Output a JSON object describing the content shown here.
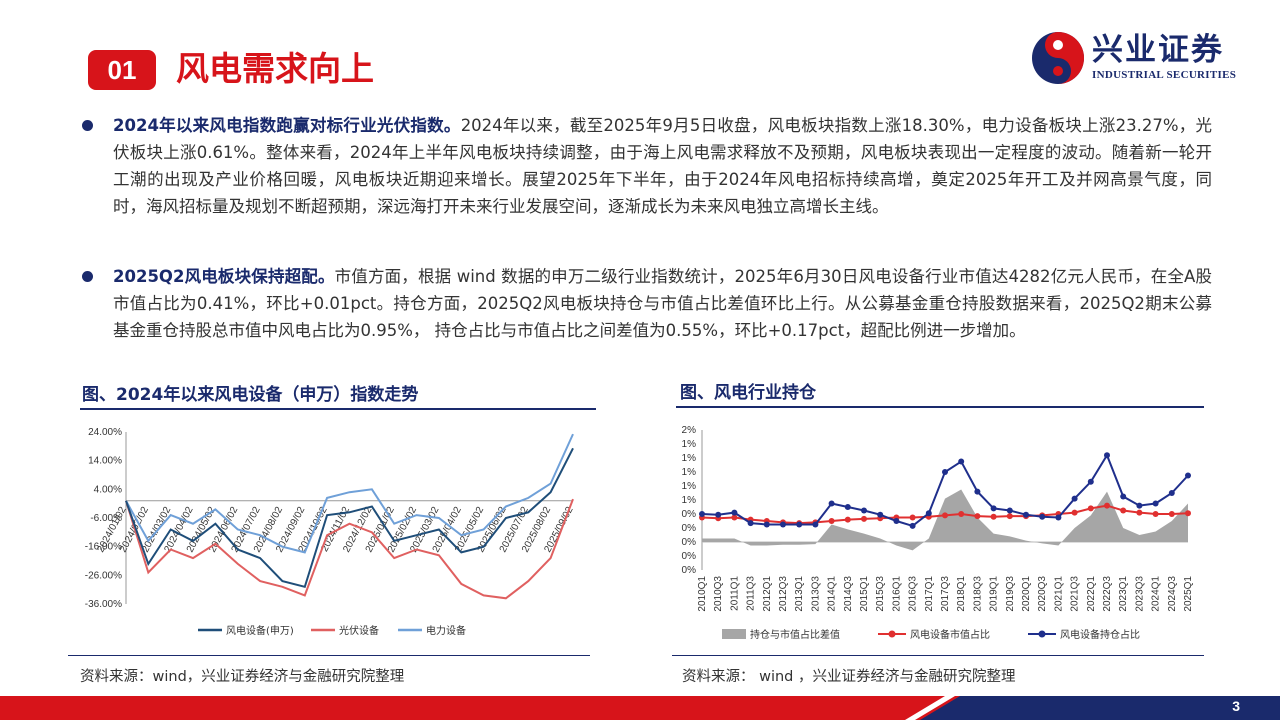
{
  "header": {
    "section_number": "01",
    "section_title": "风电需求向上",
    "logo_cn": "兴业证券",
    "logo_en": "INDUSTRIAL SECURITIES"
  },
  "bullets": [
    {
      "lead": "2024年以来风电指数跑赢对标行业光伏指数。",
      "body": "2024年以来，截至2025年9月5日收盘，风电板块指数上涨18.30%，电力设备板块上涨23.27%，光伏板块上涨0.61%。整体来看，2024年上半年风电板块持续调整，由于海上风电需求释放不及预期，风电板块表现出一定程度的波动。随着新一轮开工潮的出现及产业价格回暖，风电板块近期迎来增长。展望2025年下半年，由于2024年风电招标持续高增，奠定2025年开工及并网高景气度，同时，海风招标量及规划不断超预期，深远海打开未来行业发展空间，逐渐成长为未来风电独立高增长主线。"
    },
    {
      "lead": "2025Q2风电板块保持超配。",
      "body": "市值方面，根据 wind 数据的申万二级行业指数统计，2025年6月30日风电设备行业市值达4282亿元人民币，在全A股市值占比为0.41%，环比+0.01pct。持仓方面，2025Q2风电板块持仓与市值占比差值环比上行。从公募基金重仓持股数据来看，2025Q2期末公募基金重仓持股总市值中风电占比为0.95%， 持仓占比与市值占比之间差值为0.55%，环比+0.17pct，超配比例进一步增加。"
    }
  ],
  "figures": {
    "left_title": "图、2024年以来风电设备（申万）指数走势",
    "right_title": "图、风电行业持仓",
    "left_source": "资料来源：wind，兴业证券经济与金融研究院整理",
    "right_source": "资料来源： wind ，兴业证券经济与金融研究院整理"
  },
  "page_number": "3",
  "colors": {
    "brand_red": "#d7141a",
    "brand_navy": "#1a2a6c",
    "wind_line": "#1f4e79",
    "pv_line": "#e06060",
    "power_line": "#6fa0d8",
    "holding_line": "#1f2f8c",
    "mv_line": "#e03030",
    "diff_area": "#a6a6a6"
  },
  "chart_data": [
    {
      "type": "line",
      "title": "",
      "ylim": [
        -36,
        24
      ],
      "y_ticks": [
        "24.00%",
        "14.00%",
        "4.00%",
        "-6.00%",
        "-16.00%",
        "-26.00%",
        "-36.00%"
      ],
      "x_ticks": [
        "2024/01/02",
        "2024/02/02",
        "2024/03/02",
        "2024/04/02",
        "2024/05/02",
        "2024/06/02",
        "2024/07/02",
        "2024/08/02",
        "2024/09/02",
        "2024/10/02",
        "2024/11/02",
        "2024/12/02",
        "2025/01/02",
        "2025/02/02",
        "2025/03/02",
        "2025/04/02",
        "2025/05/02",
        "2025/06/02",
        "2025/07/02",
        "2025/08/02",
        "2025/09/02"
      ],
      "x": [
        "2024-01",
        "2024-02",
        "2024-03",
        "2024-04",
        "2024-05",
        "2024-06",
        "2024-07",
        "2024-08",
        "2024-09",
        "2024-10",
        "2024-11",
        "2024-12",
        "2025-01",
        "2025-02",
        "2025-03",
        "2025-04",
        "2025-05",
        "2025-06",
        "2025-07",
        "2025-08",
        "2025-09"
      ],
      "series": [
        {
          "name": "风电设备(申万)",
          "values": [
            0,
            -22,
            -10,
            -14,
            -8,
            -17,
            -20,
            -28,
            -30,
            -5,
            -4,
            -2,
            -14,
            -12,
            -10,
            -18,
            -16,
            -6,
            -4,
            3,
            18.3
          ]
        },
        {
          "name": "光伏设备",
          "values": [
            0,
            -25,
            -17,
            -20,
            -15,
            -22,
            -28,
            -30,
            -33,
            -12,
            -8,
            -11,
            -20,
            -17,
            -19,
            -29,
            -33,
            -34,
            -28,
            -20,
            0.61
          ]
        },
        {
          "name": "电力设备",
          "values": [
            0,
            -14,
            -5,
            -8,
            -3,
            -10,
            -12,
            -16,
            -18,
            1,
            3,
            4,
            -8,
            -5,
            -6,
            -12,
            -10,
            -2,
            1,
            6,
            23.27
          ]
        }
      ],
      "legend": "bottom",
      "grid": false
    },
    {
      "type": "line",
      "title": "",
      "y_ticks": [
        "2%",
        "1%",
        "1%",
        "1%",
        "1%",
        "1%",
        "0%",
        "0%",
        "0%",
        "0%",
        "0%"
      ],
      "x": [
        "2010Q1",
        "2010Q3",
        "2011Q1",
        "2011Q3",
        "2012Q1",
        "2012Q3",
        "2013Q1",
        "2013Q3",
        "2014Q1",
        "2014Q3",
        "2015Q1",
        "2015Q3",
        "2016Q1",
        "2016Q3",
        "2017Q1",
        "2017Q3",
        "2018Q1",
        "2018Q3",
        "2019Q1",
        "2019Q3",
        "2020Q1",
        "2020Q3",
        "2021Q1",
        "2021Q3",
        "2022Q1",
        "2022Q3",
        "2023Q1",
        "2023Q3",
        "2024Q1",
        "2024Q3",
        "2025Q1"
      ],
      "series": [
        {
          "name": "持仓与市值占比差值",
          "values": [
            0.05,
            0.05,
            0.05,
            -0.05,
            -0.05,
            -0.04,
            -0.04,
            -0.03,
            0.25,
            0.18,
            0.12,
            0.05,
            -0.05,
            -0.12,
            0.05,
            0.62,
            0.75,
            0.35,
            0.12,
            0.08,
            0.02,
            -0.02,
            -0.05,
            0.2,
            0.38,
            0.72,
            0.2,
            0.1,
            0.15,
            0.3,
            0.55
          ]
        },
        {
          "name": "风电设备市值占比",
          "values": [
            0.35,
            0.34,
            0.35,
            0.32,
            0.3,
            0.28,
            0.27,
            0.28,
            0.3,
            0.32,
            0.33,
            0.34,
            0.35,
            0.35,
            0.36,
            0.38,
            0.4,
            0.37,
            0.36,
            0.37,
            0.37,
            0.38,
            0.4,
            0.42,
            0.48,
            0.52,
            0.45,
            0.42,
            0.4,
            0.4,
            0.41
          ]
        },
        {
          "name": "风电设备持仓占比",
          "values": [
            0.4,
            0.39,
            0.42,
            0.27,
            0.25,
            0.25,
            0.25,
            0.25,
            0.55,
            0.5,
            0.45,
            0.39,
            0.3,
            0.23,
            0.41,
            1.0,
            1.15,
            0.72,
            0.48,
            0.45,
            0.39,
            0.36,
            0.35,
            0.62,
            0.86,
            1.24,
            0.65,
            0.52,
            0.55,
            0.7,
            0.95
          ]
        }
      ],
      "legend": "bottom",
      "grid": false
    }
  ]
}
